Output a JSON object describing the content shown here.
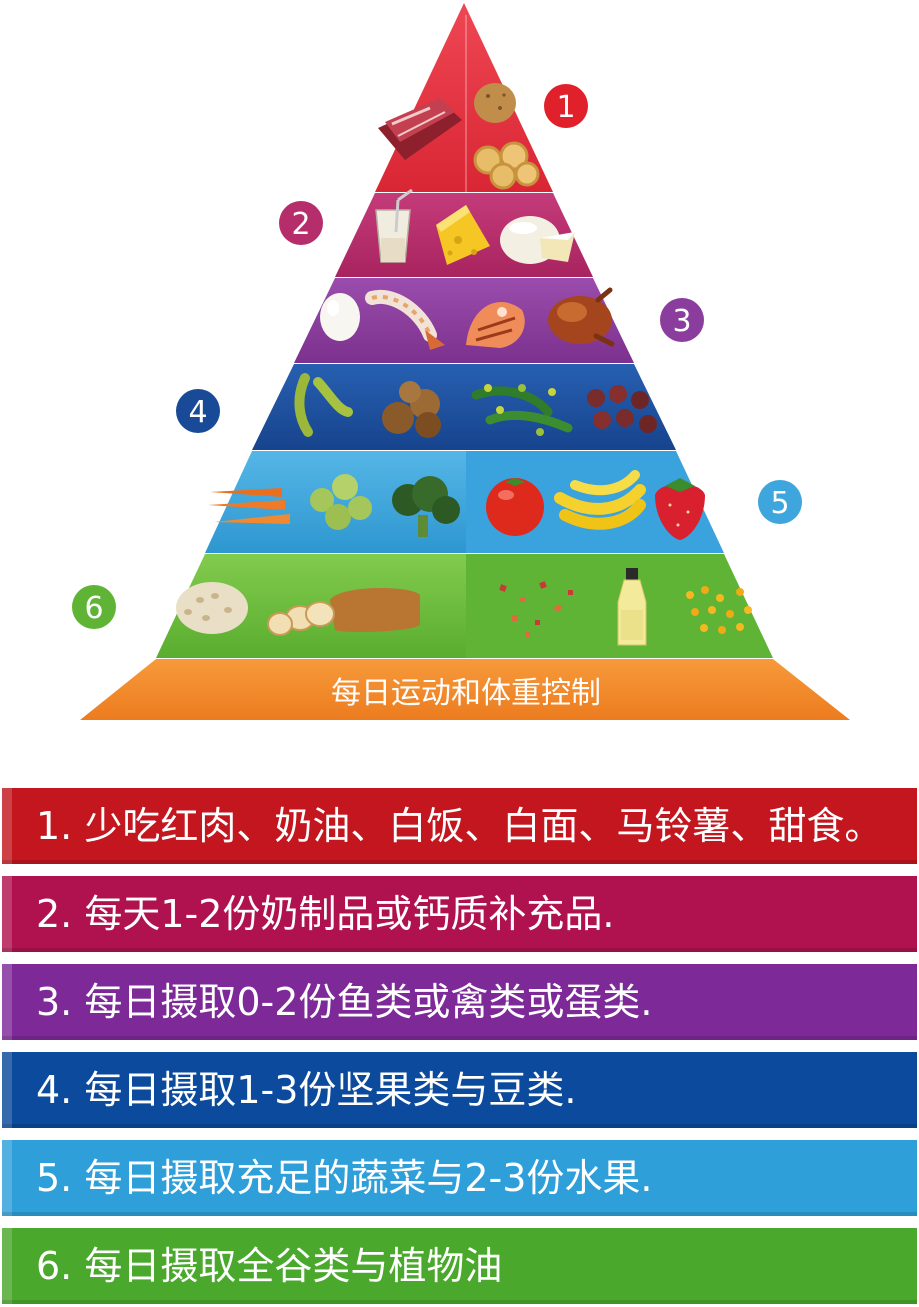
{
  "pyramid": {
    "base_label": "每日运动和体重控制",
    "badges": [
      "1",
      "2",
      "3",
      "4",
      "5",
      "6"
    ],
    "colors": {
      "tier1": "#e5323e",
      "tier2": "#b42d6a",
      "tier3": "#8a3d9c",
      "tier4": "#1d4f9f",
      "tier5": "#3ea6dc",
      "tier6": "#6dbe3c",
      "base": "#f28a2b"
    },
    "food_icons": {
      "tier1": [
        "red-meat-icon",
        "potato-icon",
        "pasta-icon"
      ],
      "tier2": [
        "milk-glass-icon",
        "cheese-icon",
        "brie-cheese-icon"
      ],
      "tier3": [
        "egg-icon",
        "shrimp-icon",
        "salmon-steak-icon",
        "roast-chicken-icon"
      ],
      "tier4": [
        "edamame-icon",
        "walnut-icon",
        "peas-icon",
        "chestnut-icon"
      ],
      "tier5": [
        "carrot-icon",
        "brussels-sprout-icon",
        "broccoli-icon",
        "tomato-icon",
        "banana-icon",
        "strawberry-icon"
      ],
      "tier6": [
        "grain-icon",
        "bread-icon",
        "pepper-flakes-icon",
        "oil-bottle-icon",
        "corn-icon"
      ]
    }
  },
  "guidelines": [
    {
      "text": "1. 少吃红肉、奶油、白饭、白面、马铃薯、甜食。",
      "color": "#c3161e"
    },
    {
      "text": "2. 每天1-2份奶制品或钙质补充品.",
      "color": "#b0124f"
    },
    {
      "text": "3. 每日摄取0-2份鱼类或禽类或蛋类.",
      "color": "#7d2a98"
    },
    {
      "text": "4. 每日摄取1-3份坚果类与豆类.",
      "color": "#0b4a9c"
    },
    {
      "text": "5. 每日摄取充足的蔬菜与2-3份水果.",
      "color": "#2f9fd9"
    },
    {
      "text": "6. 每日摄取全谷类与植物油",
      "color": "#4aa82c"
    }
  ]
}
